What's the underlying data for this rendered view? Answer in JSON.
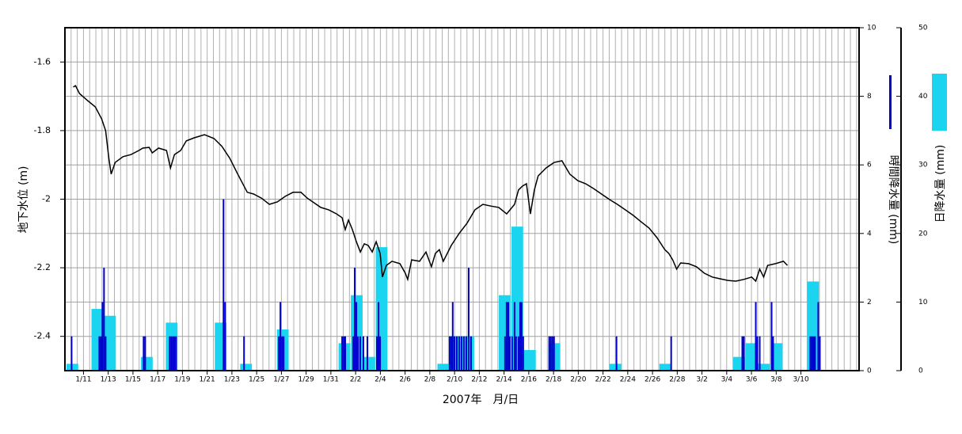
{
  "chart_data": {
    "type": "combo",
    "xlabel": "2007年　月/日",
    "ylabel": "地下水位 (m)",
    "y2label": "時間降水量 (mm)",
    "y3label": "日降水量 (mm)",
    "xlim": [
      8.5,
      72.7
    ],
    "xticks": [
      {
        "value": 10,
        "label": "1/11"
      },
      {
        "value": 12,
        "label": "1/13"
      },
      {
        "value": 14,
        "label": "1/15"
      },
      {
        "value": 16,
        "label": "1/17"
      },
      {
        "value": 18,
        "label": "1/19"
      },
      {
        "value": 20,
        "label": "1/21"
      },
      {
        "value": 22,
        "label": "1/23"
      },
      {
        "value": 24,
        "label": "1/25"
      },
      {
        "value": 26,
        "label": "1/27"
      },
      {
        "value": 28,
        "label": "1/29"
      },
      {
        "value": 30,
        "label": "1/31"
      },
      {
        "value": 32,
        "label": "2/2"
      },
      {
        "value": 34,
        "label": "2/4"
      },
      {
        "value": 36,
        "label": "2/6"
      },
      {
        "value": 38,
        "label": "2/8"
      },
      {
        "value": 40,
        "label": "2/10"
      },
      {
        "value": 42,
        "label": "2/12"
      },
      {
        "value": 44,
        "label": "2/14"
      },
      {
        "value": 46,
        "label": "2/16"
      },
      {
        "value": 48,
        "label": "2/18"
      },
      {
        "value": 50,
        "label": "2/20"
      },
      {
        "value": 52,
        "label": "2/22"
      },
      {
        "value": 54,
        "label": "2/24"
      },
      {
        "value": 56,
        "label": "2/26"
      },
      {
        "value": 58,
        "label": "2/28"
      },
      {
        "value": 60,
        "label": "3/2"
      },
      {
        "value": 62,
        "label": "3/4"
      },
      {
        "value": 64,
        "label": "3/6"
      },
      {
        "value": 66,
        "label": "3/8"
      },
      {
        "value": 68,
        "label": "3/10"
      }
    ],
    "ylim": [
      -2.5,
      -1.5
    ],
    "yticks": [
      -1.6,
      -1.8,
      -2,
      -2.2,
      -2.4
    ],
    "y2lim": [
      0,
      10
    ],
    "y2ticks": [
      0,
      2,
      4,
      6,
      8,
      10
    ],
    "y3lim": [
      0,
      50
    ],
    "y3ticks": [
      0,
      10,
      20,
      30,
      40,
      50
    ],
    "grid": true,
    "series": [
      {
        "type": "line",
        "color": "#000000",
        "x": [
          9.17,
          9.36,
          9.68,
          10.32,
          10.96,
          11.47,
          11.79,
          12.05,
          12.24,
          12.56,
          13.2,
          13.84,
          14.48,
          14.8,
          15.31,
          15.56,
          16.07,
          16.71,
          17.03,
          17.35,
          17.86,
          18.31,
          18.95,
          19.78,
          20.55,
          21.19,
          21.83,
          22.47,
          23.24,
          23.75,
          24.39,
          25.03,
          25.67,
          26.3,
          26.94,
          27.58,
          28.09,
          28.54,
          29.18,
          29.82,
          30.46,
          30.91,
          31.16,
          31.42,
          31.74,
          32.06,
          32.38,
          32.7,
          33.02,
          33.34,
          33.66,
          33.98,
          34.17,
          34.49,
          34.94,
          35.58,
          36.02,
          36.21,
          36.53,
          37.17,
          37.69,
          38.13,
          38.45,
          38.77,
          39.09,
          39.73,
          40.37,
          41.01,
          41.65,
          42.29,
          42.93,
          43.57,
          44.21,
          44.85,
          45.17,
          45.49,
          45.81,
          46.13,
          46.45,
          46.76,
          47.4,
          48.04,
          48.68,
          49.32,
          49.96,
          50.6,
          51.24,
          51.88,
          52.52,
          53.16,
          53.8,
          54.44,
          55.08,
          55.72,
          56.36,
          56.99,
          57.31,
          57.63,
          57.95,
          58.27,
          58.91,
          59.55,
          60.19,
          60.83,
          61.46,
          62.1,
          62.74,
          63.38,
          64.02,
          64.35,
          64.67,
          64.99,
          65.31,
          65.95,
          66.59,
          66.91
        ],
        "values": [
          -1.673,
          -1.669,
          -1.692,
          -1.712,
          -1.731,
          -1.766,
          -1.8,
          -1.881,
          -1.927,
          -1.893,
          -1.876,
          -1.87,
          -1.858,
          -1.851,
          -1.849,
          -1.865,
          -1.851,
          -1.858,
          -1.909,
          -1.87,
          -1.858,
          -1.83,
          -1.821,
          -1.812,
          -1.823,
          -1.846,
          -1.881,
          -1.927,
          -1.98,
          -1.985,
          -1.997,
          -2.015,
          -2.008,
          -1.992,
          -1.98,
          -1.98,
          -1.997,
          -2.008,
          -2.024,
          -2.031,
          -2.043,
          -2.054,
          -2.089,
          -2.061,
          -2.089,
          -2.124,
          -2.154,
          -2.13,
          -2.135,
          -2.154,
          -2.124,
          -2.158,
          -2.227,
          -2.193,
          -2.181,
          -2.188,
          -2.216,
          -2.234,
          -2.177,
          -2.181,
          -2.154,
          -2.197,
          -2.158,
          -2.147,
          -2.181,
          -2.135,
          -2.1,
          -2.07,
          -2.031,
          -2.015,
          -2.02,
          -2.024,
          -2.043,
          -2.015,
          -1.973,
          -1.962,
          -1.955,
          -2.043,
          -1.973,
          -1.932,
          -1.909,
          -1.893,
          -1.888,
          -1.927,
          -1.946,
          -1.955,
          -1.969,
          -1.985,
          -2.001,
          -2.015,
          -2.031,
          -2.047,
          -2.066,
          -2.084,
          -2.112,
          -2.147,
          -2.158,
          -2.177,
          -2.204,
          -2.186,
          -2.188,
          -2.197,
          -2.216,
          -2.227,
          -2.232,
          -2.237,
          -2.239,
          -2.234,
          -2.227,
          -2.239,
          -2.204,
          -2.227,
          -2.193,
          -2.188,
          -2.181,
          -2.193
        ]
      },
      {
        "type": "bar",
        "axis": "y3",
        "color": "#1ad4f0",
        "x": [
          9.1,
          11.12,
          12.14,
          15.12,
          17.13,
          21.09,
          23.14,
          26.11,
          31.1,
          32.09,
          33.11,
          34.1,
          39.09,
          40.08,
          41.11,
          44.05,
          45.07,
          46.09,
          48.07,
          53.0,
          57.03,
          63.0,
          64.0,
          65.02,
          66.04,
          68.98
        ],
        "values": [
          1,
          9,
          8,
          2,
          7,
          7,
          1,
          6,
          4,
          11,
          2,
          18,
          1,
          5,
          5,
          11,
          21,
          3,
          4,
          1,
          1,
          2,
          4,
          1,
          4,
          13
        ]
      },
      {
        "type": "bar",
        "axis": "y2",
        "color": "#0000cc",
        "x": [
          9.04,
          11.28,
          11.41,
          11.53,
          11.66,
          11.79,
          14.86,
          14.99,
          16.97,
          17.1,
          17.23,
          17.35,
          17.48,
          21.32,
          21.45,
          22.98,
          25.79,
          25.92,
          26.05,
          26.18,
          30.91,
          31.04,
          31.16,
          31.8,
          31.93,
          32.06,
          32.19,
          32.38,
          32.63,
          32.95,
          33.72,
          33.85,
          33.98,
          39.6,
          39.73,
          39.85,
          39.99,
          40.18,
          40.37,
          40.56,
          40.75,
          40.95,
          41.14,
          41.33,
          44.08,
          44.21,
          44.34,
          44.46,
          44.65,
          44.85,
          44.97,
          45.17,
          45.3,
          45.42,
          45.55,
          47.65,
          47.78,
          47.91,
          48.04,
          53.09,
          57.51,
          63.26,
          63.39,
          64.35,
          64.48,
          64.67,
          65.63,
          65.75,
          68.76,
          68.89,
          69.02,
          69.14,
          69.4,
          69.53
        ],
        "values": [
          1,
          1,
          1,
          2,
          3,
          1,
          1,
          1,
          1,
          1,
          1,
          1,
          1,
          5,
          2,
          1,
          1,
          2,
          1,
          1,
          1,
          1,
          1,
          1,
          3,
          2,
          1,
          1,
          1,
          1,
          1,
          2,
          1,
          1,
          1,
          2,
          1,
          1,
          1,
          1,
          1,
          1,
          3,
          1,
          1,
          2,
          2,
          1,
          1,
          2,
          1,
          1,
          2,
          2,
          1,
          1,
          1,
          1,
          1,
          1,
          1,
          1,
          1,
          2,
          1,
          1,
          2,
          1,
          1,
          1,
          1,
          1,
          2,
          1
        ]
      }
    ]
  }
}
